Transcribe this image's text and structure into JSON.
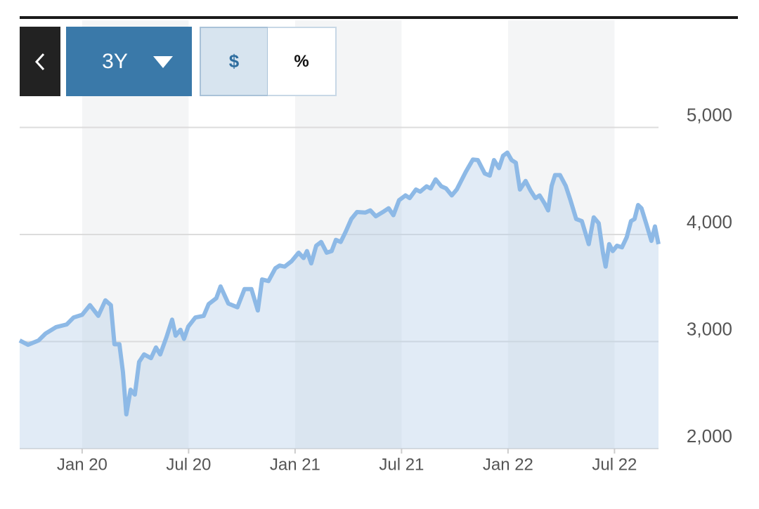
{
  "controls": {
    "back": "<",
    "range": "3Y",
    "dollar": "$",
    "percent": "%"
  },
  "chart_data": {
    "type": "area",
    "x": [
      -3.52,
      -3.05,
      -2.46,
      -2.06,
      -1.47,
      -0.87,
      -0.48,
      0,
      0.44,
      0.91,
      1.31,
      1.62,
      1.82,
      2.1,
      2.3,
      2.49,
      2.73,
      2.97,
      3.21,
      3.49,
      3.88,
      4.16,
      4.4,
      4.75,
      5.07,
      5.27,
      5.54,
      5.74,
      5.98,
      6.38,
      6.85,
      7.13,
      7.56,
      7.8,
      8.24,
      8.75,
      9.15,
      9.54,
      9.9,
      10.14,
      10.5,
      10.89,
      11.13,
      11.41,
      11.8,
      12.2,
      12.48,
      12.67,
      12.91,
      13.19,
      13.47,
      13.78,
      14.06,
      14.3,
      14.57,
      14.85,
      15.17,
      15.49,
      15.96,
      16.24,
      16.55,
      16.95,
      17.27,
      17.54,
      17.86,
      18.22,
      18.46,
      18.81,
      19.05,
      19.41,
      19.64,
      19.92,
      20.24,
      20.51,
      20.83,
      21.11,
      21.62,
      22.02,
      22.3,
      22.69,
      22.97,
      23.21,
      23.49,
      23.72,
      23.96,
      24.2,
      24.44,
      24.67,
      24.99,
      25.27,
      25.54,
      25.78,
      26.06,
      26.26,
      26.46,
      26.65,
      26.93,
      27.25,
      27.52,
      27.84,
      28.16,
      28.55,
      28.83,
      29.11,
      29.35,
      29.5,
      29.7,
      29.9,
      30.14,
      30.42,
      30.69,
      30.93,
      31.13,
      31.33,
      31.52,
      31.8,
      32.08,
      32.28,
      32.48
    ],
    "values": [
      3010,
      2970,
      3010,
      3075,
      3135,
      3160,
      3225,
      3250,
      3340,
      3240,
      3385,
      3340,
      2975,
      2975,
      2715,
      2320,
      2550,
      2505,
      2810,
      2880,
      2845,
      2945,
      2880,
      3040,
      3205,
      3055,
      3110,
      3025,
      3140,
      3225,
      3240,
      3350,
      3405,
      3515,
      3355,
      3320,
      3490,
      3490,
      3290,
      3580,
      3565,
      3685,
      3710,
      3700,
      3750,
      3830,
      3780,
      3845,
      3730,
      3895,
      3930,
      3830,
      3845,
      3950,
      3930,
      4025,
      4145,
      4210,
      4205,
      4225,
      4170,
      4210,
      4245,
      4180,
      4320,
      4365,
      4340,
      4420,
      4400,
      4450,
      4430,
      4515,
      4450,
      4430,
      4365,
      4420,
      4585,
      4700,
      4695,
      4570,
      4550,
      4695,
      4620,
      4735,
      4765,
      4695,
      4670,
      4420,
      4500,
      4410,
      4340,
      4365,
      4290,
      4225,
      4455,
      4555,
      4555,
      4455,
      4320,
      4145,
      4125,
      3910,
      4160,
      4105,
      3830,
      3700,
      3910,
      3845,
      3895,
      3880,
      3975,
      4125,
      4145,
      4275,
      4245,
      4095,
      3940,
      4075,
      3910
    ],
    "color": "#8db9e6",
    "xlim": [
      -3.52,
      32.48
    ],
    "xticks": [
      {
        "value": 0,
        "label": "Jan 20"
      },
      {
        "value": 6,
        "label": "Jul 20"
      },
      {
        "value": 12,
        "label": "Jan 21"
      },
      {
        "value": 18,
        "label": "Jul 21"
      },
      {
        "value": 24,
        "label": "Jan 22"
      },
      {
        "value": 30,
        "label": "Jul 22"
      }
    ],
    "ylim": [
      2000,
      6000
    ],
    "yticks": [
      {
        "value": 2000,
        "label": "2,000"
      },
      {
        "value": 3000,
        "label": "3,000"
      },
      {
        "value": 4000,
        "label": "4,000"
      },
      {
        "value": 5000,
        "label": "5,000"
      }
    ],
    "grid": true
  }
}
